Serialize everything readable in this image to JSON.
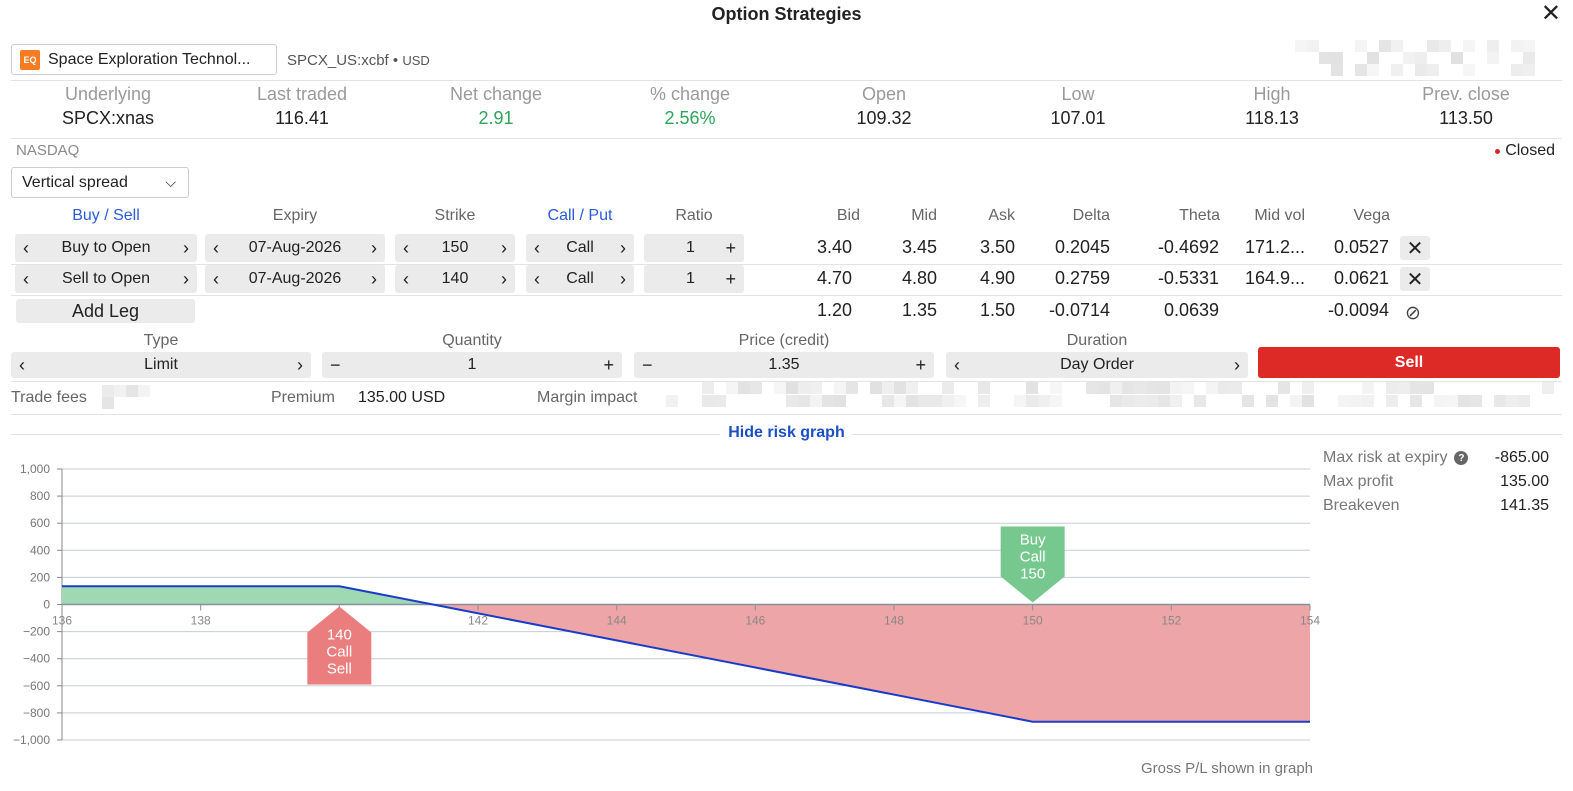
{
  "header": {
    "title": "Option Strategies"
  },
  "instrument": {
    "badge": "EQ",
    "name": "Space Exploration Technol...",
    "symbol": "SPCX_US:xcbf",
    "currency": "USD"
  },
  "quote": {
    "fields": [
      {
        "label": "Underlying",
        "value": "SPCX:xnas"
      },
      {
        "label": "Last traded",
        "value": "116.41"
      },
      {
        "label": "Net change",
        "value": "2.91"
      },
      {
        "label": "% change",
        "value": "2.56%"
      },
      {
        "label": "Open",
        "value": "109.32"
      },
      {
        "label": "Low",
        "value": "107.01"
      },
      {
        "label": "High",
        "value": "118.13"
      },
      {
        "label": "Prev. close",
        "value": "113.50"
      }
    ],
    "exchange": "NASDAQ",
    "status": "Closed"
  },
  "strategy": {
    "selected": "Vertical spread"
  },
  "legs": {
    "headers": {
      "buy_sell": "Buy / Sell",
      "expiry": "Expiry",
      "strike": "Strike",
      "call_put": "Call / Put",
      "ratio": "Ratio",
      "bid": "Bid",
      "mid": "Mid",
      "ask": "Ask",
      "delta": "Delta",
      "theta": "Theta",
      "mid_vol": "Mid vol",
      "vega": "Vega"
    },
    "rows": [
      {
        "side": "Buy to Open",
        "expiry": "07-Aug-2026",
        "strike": "150",
        "type": "Call",
        "ratio": "1",
        "bid": "3.40",
        "mid": "3.45",
        "ask": "3.50",
        "delta": "0.2045",
        "theta": "-0.4692",
        "mid_vol": "171.2...",
        "vega": "0.0527"
      },
      {
        "side": "Sell to Open",
        "expiry": "07-Aug-2026",
        "strike": "140",
        "type": "Call",
        "ratio": "1",
        "bid": "4.70",
        "mid": "4.80",
        "ask": "4.90",
        "delta": "0.2759",
        "theta": "-0.5331",
        "mid_vol": "164.9...",
        "vega": "0.0621"
      }
    ],
    "totals": {
      "bid": "1.20",
      "mid": "1.35",
      "ask": "1.50",
      "delta": "-0.0714",
      "theta": "0.0639",
      "vega": "-0.0094"
    },
    "add_leg_label": "Add Leg"
  },
  "order": {
    "type_label": "Type",
    "type_value": "Limit",
    "quantity_label": "Quantity",
    "quantity_value": "1",
    "price_label": "Price (credit)",
    "price_value": "1.35",
    "duration_label": "Duration",
    "duration_value": "Day Order",
    "action_label": "Sell"
  },
  "fees": {
    "trade_fees_label": "Trade fees",
    "premium_label": "Premium",
    "premium_value": "135.00 USD",
    "margin_label": "Margin impact"
  },
  "risk_graph": {
    "toggle_label": "Hide risk graph",
    "max_risk_label": "Max risk at expiry",
    "max_risk_value": "-865.00",
    "max_profit_label": "Max profit",
    "max_profit_value": "135.00",
    "breakeven_label": "Breakeven",
    "breakeven_value": "141.35",
    "footnote": "Gross P/L shown in graph"
  },
  "colors": {
    "accent": "#2a5bd7",
    "positive": "#2ea55a",
    "sell": "#de2a27",
    "profit_fill": "#9fd9b3",
    "loss_fill": "#eea5a7",
    "line": "#1a3cc9"
  },
  "chart_data": {
    "type": "line",
    "x": [
      136,
      140,
      141.35,
      150,
      154
    ],
    "y": [
      135,
      135,
      0,
      -865,
      -865
    ],
    "xlim": [
      136,
      154
    ],
    "ylim": [
      -1000,
      1000
    ],
    "x_ticks": [
      136,
      138,
      140,
      142,
      144,
      146,
      148,
      150,
      152,
      154
    ],
    "y_ticks": [
      1000,
      800,
      600,
      400,
      200,
      0,
      -200,
      -400,
      -600,
      -800,
      -1000
    ],
    "y_tick_labels": [
      "1,000",
      "800",
      "600",
      "400",
      "200",
      "0",
      "−200",
      "−400",
      "−600",
      "−800",
      "−1,000"
    ],
    "markers": [
      {
        "strike": 140,
        "lines": [
          "140",
          "Call",
          "Sell"
        ],
        "side": "sell",
        "color": "#ea7e7e"
      },
      {
        "strike": 150,
        "lines": [
          "Buy",
          "Call",
          "150"
        ],
        "side": "buy",
        "color": "#77c88f"
      }
    ],
    "grid": true
  }
}
